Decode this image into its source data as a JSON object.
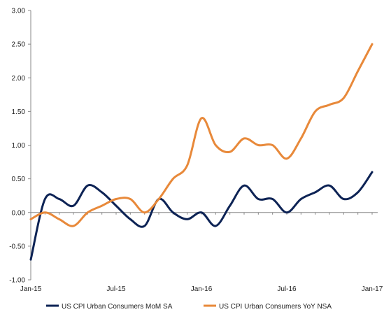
{
  "chart_data": {
    "type": "line",
    "title": "",
    "xlabel": "",
    "ylabel": "",
    "ylim": [
      -1.0,
      3.0
    ],
    "y_ticks": [
      "3.00",
      "2.50",
      "2.00",
      "1.50",
      "1.00",
      "0.50",
      "0.00",
      "-0.50",
      "-1.00"
    ],
    "y_tick_values": [
      3.0,
      2.5,
      2.0,
      1.5,
      1.0,
      0.5,
      0.0,
      -0.5,
      -1.0
    ],
    "x_tick_labels": [
      "Jan-15",
      "Jul-15",
      "Jan-16",
      "Jul-16",
      "Jan-17"
    ],
    "x_tick_dates": [
      "2015-01",
      "2015-07",
      "2016-01",
      "2016-07",
      "2017-01"
    ],
    "grid": false,
    "legend_position": "bottom",
    "x": [
      "2015-01",
      "2015-02",
      "2015-03",
      "2015-04",
      "2015-05",
      "2015-06",
      "2015-07",
      "2015-08",
      "2015-09",
      "2015-10",
      "2015-11",
      "2015-12",
      "2016-01",
      "2016-02",
      "2016-03",
      "2016-04",
      "2016-05",
      "2016-06",
      "2016-07",
      "2016-08",
      "2016-09",
      "2016-10",
      "2016-11",
      "2016-12",
      "2017-01"
    ],
    "series": [
      {
        "name": "US CPI Urban Consumers MoM SA",
        "color": "#0d2355",
        "values": [
          -0.7,
          0.2,
          0.2,
          0.1,
          0.4,
          0.3,
          0.1,
          -0.1,
          -0.2,
          0.2,
          0.0,
          -0.1,
          0.0,
          -0.2,
          0.1,
          0.4,
          0.2,
          0.2,
          0.0,
          0.2,
          0.3,
          0.4,
          0.2,
          0.3,
          0.6
        ]
      },
      {
        "name": "US CPI Urban Consumers YoY NSA",
        "color": "#e8893a",
        "values": [
          -0.1,
          0.0,
          -0.1,
          -0.2,
          0.0,
          0.1,
          0.2,
          0.2,
          0.0,
          0.2,
          0.5,
          0.7,
          1.4,
          1.0,
          0.9,
          1.1,
          1.0,
          1.0,
          0.8,
          1.1,
          1.5,
          1.6,
          1.7,
          2.1,
          2.5
        ]
      }
    ]
  }
}
